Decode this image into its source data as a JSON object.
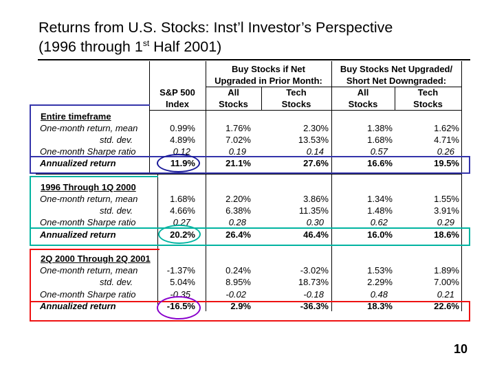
{
  "title": {
    "line1": "Returns from U.S. Stocks: Inst’l Investor’s Perspective",
    "line2_pre": "(1996 through 1",
    "line2_sup": "st",
    "line2_post": " Half 2001)"
  },
  "headers": {
    "group1_l1": "Buy Stocks if Net",
    "group1_l2": "Upgraded in Prior Month:",
    "group2_l1": "Buy Stocks Net Upgraded/",
    "group2_l2": "Short Net Downgraded:",
    "sp500_l1": "S&P 500",
    "sp500_l2": "Index",
    "c2_l1": "All",
    "c2_l2": "Stocks",
    "c3_l1": "Tech",
    "c3_l2": "Stocks",
    "c4_l1": "All",
    "c4_l2": "Stocks",
    "c5_l1": "Tech",
    "c5_l2": "Stocks"
  },
  "sections": [
    {
      "title": "Entire timeframe",
      "rows": [
        {
          "label": "One-month return, mean",
          "values": [
            "0.99%",
            "1.76%",
            "2.30%",
            "1.38%",
            "1.62%"
          ]
        },
        {
          "label": "std. dev.",
          "values": [
            "4.89%",
            "7.02%",
            "13.53%",
            "1.68%",
            "4.71%"
          ]
        },
        {
          "label": "One-month Sharpe ratio",
          "values": [
            "0.12",
            "0.19",
            "0.14",
            "0.57",
            "0.26"
          ]
        },
        {
          "label": "Annualized return",
          "values": [
            "11.9%",
            "21.1%",
            "27.6%",
            "16.6%",
            "19.5%"
          ]
        }
      ]
    },
    {
      "title": "1996 Through 1Q 2000",
      "rows": [
        {
          "label": "One-month return, mean",
          "values": [
            "1.68%",
            "2.20%",
            "3.86%",
            "1.34%",
            "1.55%"
          ]
        },
        {
          "label": "std. dev.",
          "values": [
            "4.66%",
            "6.38%",
            "11.35%",
            "1.48%",
            "3.91%"
          ]
        },
        {
          "label": "One-month Sharpe ratio",
          "values": [
            "0.27",
            "0.28",
            "0.30",
            "0.62",
            "0.29"
          ]
        },
        {
          "label": "Annualized return",
          "values": [
            "20.2%",
            "26.4%",
            "46.4%",
            "16.0%",
            "18.6%"
          ]
        }
      ]
    },
    {
      "title": "2Q 2000 Through 2Q 2001",
      "rows": [
        {
          "label": "One-month return, mean",
          "values": [
            "-1.37%",
            "0.24%",
            "-3.02%",
            "1.53%",
            "1.89%"
          ]
        },
        {
          "label": "std. dev.",
          "values": [
            "5.04%",
            "8.95%",
            "18.73%",
            "2.29%",
            "7.00%"
          ]
        },
        {
          "label": "One-month Sharpe ratio",
          "values": [
            "-0.35",
            "-0.02",
            "-0.18",
            "0.48",
            "0.21"
          ]
        },
        {
          "label": "Annualized return",
          "values": [
            "-16.5%",
            "2.9%",
            "-36.3%",
            "18.3%",
            "22.6%"
          ]
        }
      ]
    }
  ],
  "page_number": "10",
  "colors": {
    "section1_box": "#3333aa",
    "section2_box": "#00b3a0",
    "section3_box": "#ee1111"
  }
}
